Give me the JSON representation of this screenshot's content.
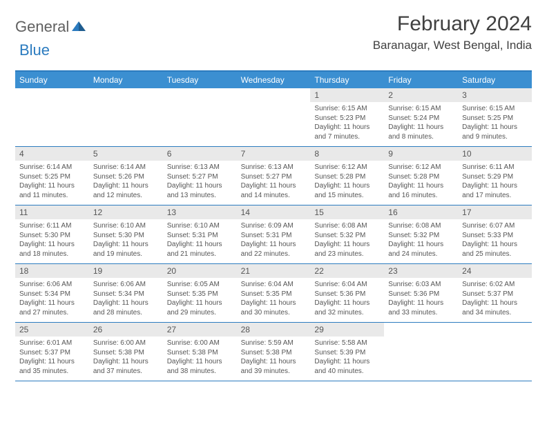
{
  "logo": {
    "text1": "General",
    "text2": "Blue"
  },
  "title": "February 2024",
  "location": "Baranagar, West Bengal, India",
  "colors": {
    "header_bg": "#3b8fd1",
    "border": "#2b7bbf",
    "daynum_bg": "#e9e9e9",
    "text": "#555555",
    "title_text": "#404040"
  },
  "days_of_week": [
    "Sunday",
    "Monday",
    "Tuesday",
    "Wednesday",
    "Thursday",
    "Friday",
    "Saturday"
  ],
  "weeks": [
    [
      null,
      null,
      null,
      null,
      {
        "n": "1",
        "sr": "6:15 AM",
        "ss": "5:23 PM",
        "dl": "11 hours and 7 minutes."
      },
      {
        "n": "2",
        "sr": "6:15 AM",
        "ss": "5:24 PM",
        "dl": "11 hours and 8 minutes."
      },
      {
        "n": "3",
        "sr": "6:15 AM",
        "ss": "5:25 PM",
        "dl": "11 hours and 9 minutes."
      }
    ],
    [
      {
        "n": "4",
        "sr": "6:14 AM",
        "ss": "5:25 PM",
        "dl": "11 hours and 11 minutes."
      },
      {
        "n": "5",
        "sr": "6:14 AM",
        "ss": "5:26 PM",
        "dl": "11 hours and 12 minutes."
      },
      {
        "n": "6",
        "sr": "6:13 AM",
        "ss": "5:27 PM",
        "dl": "11 hours and 13 minutes."
      },
      {
        "n": "7",
        "sr": "6:13 AM",
        "ss": "5:27 PM",
        "dl": "11 hours and 14 minutes."
      },
      {
        "n": "8",
        "sr": "6:12 AM",
        "ss": "5:28 PM",
        "dl": "11 hours and 15 minutes."
      },
      {
        "n": "9",
        "sr": "6:12 AM",
        "ss": "5:28 PM",
        "dl": "11 hours and 16 minutes."
      },
      {
        "n": "10",
        "sr": "6:11 AM",
        "ss": "5:29 PM",
        "dl": "11 hours and 17 minutes."
      }
    ],
    [
      {
        "n": "11",
        "sr": "6:11 AM",
        "ss": "5:30 PM",
        "dl": "11 hours and 18 minutes."
      },
      {
        "n": "12",
        "sr": "6:10 AM",
        "ss": "5:30 PM",
        "dl": "11 hours and 19 minutes."
      },
      {
        "n": "13",
        "sr": "6:10 AM",
        "ss": "5:31 PM",
        "dl": "11 hours and 21 minutes."
      },
      {
        "n": "14",
        "sr": "6:09 AM",
        "ss": "5:31 PM",
        "dl": "11 hours and 22 minutes."
      },
      {
        "n": "15",
        "sr": "6:08 AM",
        "ss": "5:32 PM",
        "dl": "11 hours and 23 minutes."
      },
      {
        "n": "16",
        "sr": "6:08 AM",
        "ss": "5:32 PM",
        "dl": "11 hours and 24 minutes."
      },
      {
        "n": "17",
        "sr": "6:07 AM",
        "ss": "5:33 PM",
        "dl": "11 hours and 25 minutes."
      }
    ],
    [
      {
        "n": "18",
        "sr": "6:06 AM",
        "ss": "5:34 PM",
        "dl": "11 hours and 27 minutes."
      },
      {
        "n": "19",
        "sr": "6:06 AM",
        "ss": "5:34 PM",
        "dl": "11 hours and 28 minutes."
      },
      {
        "n": "20",
        "sr": "6:05 AM",
        "ss": "5:35 PM",
        "dl": "11 hours and 29 minutes."
      },
      {
        "n": "21",
        "sr": "6:04 AM",
        "ss": "5:35 PM",
        "dl": "11 hours and 30 minutes."
      },
      {
        "n": "22",
        "sr": "6:04 AM",
        "ss": "5:36 PM",
        "dl": "11 hours and 32 minutes."
      },
      {
        "n": "23",
        "sr": "6:03 AM",
        "ss": "5:36 PM",
        "dl": "11 hours and 33 minutes."
      },
      {
        "n": "24",
        "sr": "6:02 AM",
        "ss": "5:37 PM",
        "dl": "11 hours and 34 minutes."
      }
    ],
    [
      {
        "n": "25",
        "sr": "6:01 AM",
        "ss": "5:37 PM",
        "dl": "11 hours and 35 minutes."
      },
      {
        "n": "26",
        "sr": "6:00 AM",
        "ss": "5:38 PM",
        "dl": "11 hours and 37 minutes."
      },
      {
        "n": "27",
        "sr": "6:00 AM",
        "ss": "5:38 PM",
        "dl": "11 hours and 38 minutes."
      },
      {
        "n": "28",
        "sr": "5:59 AM",
        "ss": "5:38 PM",
        "dl": "11 hours and 39 minutes."
      },
      {
        "n": "29",
        "sr": "5:58 AM",
        "ss": "5:39 PM",
        "dl": "11 hours and 40 minutes."
      },
      null,
      null
    ]
  ],
  "labels": {
    "sunrise": "Sunrise:",
    "sunset": "Sunset:",
    "daylight": "Daylight:"
  }
}
